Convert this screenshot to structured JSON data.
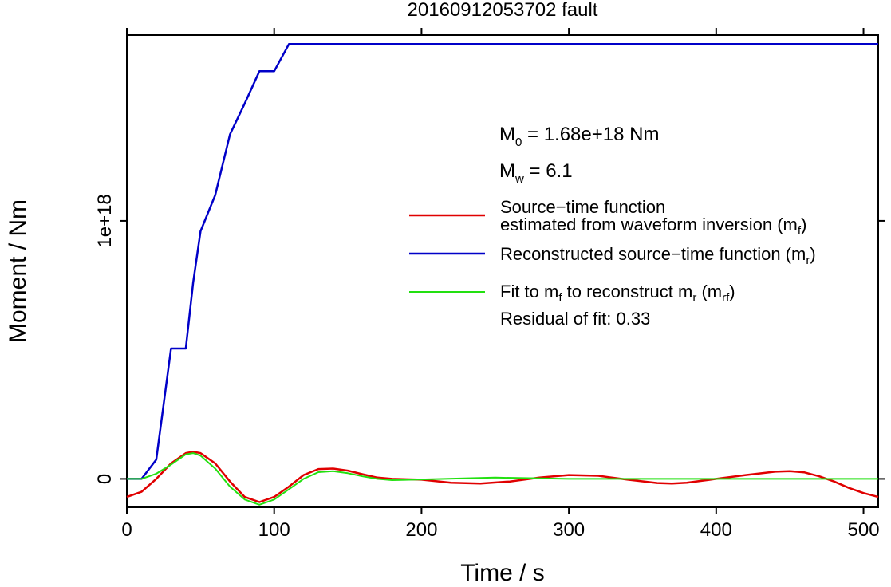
{
  "chart_data": {
    "type": "line",
    "title": "20160912053702 fault",
    "xlabel": "Time / s",
    "ylabel": "Moment / Nm",
    "xlim": [
      0,
      510
    ],
    "ylim": [
      -1.1e+17,
      1.72e+18
    ],
    "xticks": [
      0,
      100,
      200,
      300,
      400,
      500
    ],
    "xtick_labels": [
      "0",
      "100",
      "200",
      "300",
      "400",
      "500"
    ],
    "yticks": [
      0,
      1e+18
    ],
    "ytick_labels": [
      "0",
      "1e+18"
    ],
    "grid": false,
    "legend_position": "right",
    "annotations": {
      "m0_main": "M",
      "m0_sub": "0",
      "m0_value": " = 1.68e+18 Nm",
      "mw_main": "M",
      "mw_sub": "w",
      "mw_value": " = 6.1",
      "residual": "Residual of fit: 0.33"
    },
    "legend": {
      "red_line1": "Source−time function",
      "red_line2_main": "estimated from waveform inversion (m",
      "red_line2_sub": "f",
      "red_line2_end": ")",
      "blue_main": "Reconstructed source−time function (m",
      "blue_sub": "r",
      "blue_end": ")",
      "green_a": "Fit to m",
      "green_sub1": "f",
      "green_b": " to reconstruct m",
      "green_sub2": "r",
      "green_c": " (m",
      "green_sub3": "rf",
      "green_d": ")"
    },
    "series": [
      {
        "key": "mf",
        "color": "#e00000",
        "x": [
          0,
          10,
          20,
          30,
          40,
          45,
          50,
          60,
          70,
          80,
          90,
          100,
          110,
          120,
          130,
          140,
          150,
          160,
          170,
          180,
          200,
          220,
          240,
          260,
          280,
          300,
          320,
          340,
          360,
          370,
          380,
          400,
          420,
          440,
          450,
          460,
          470,
          480,
          490,
          500,
          510
        ],
        "y": [
          -7e+16,
          -5e+16,
          0,
          6e+16,
          1e+17,
          1.05e+17,
          1e+17,
          6e+16,
          -1e+16,
          -7e+16,
          -9e+16,
          -7e+16,
          -3e+16,
          1.5e+16,
          3.8e+16,
          4e+16,
          3.2e+16,
          1.8e+16,
          5000000000000000.0,
          0,
          -3000000000000000.0,
          -1.5e+16,
          -1.8e+16,
          -1e+16,
          5000000000000000.0,
          1.5e+16,
          1.2e+16,
          -3000000000000000.0,
          -1.6e+16,
          -1.8e+16,
          -1.5e+16,
          0,
          1.5e+16,
          2.8e+16,
          3e+16,
          2.5e+16,
          1e+16,
          -1e+16,
          -3.5e+16,
          -5.5e+16,
          -7e+16
        ]
      },
      {
        "key": "mr",
        "color": "#0000c8",
        "x": [
          0,
          10,
          20,
          30,
          40,
          45,
          50,
          60,
          70,
          80,
          90,
          100,
          110,
          510
        ],
        "y": [
          0,
          0,
          7.5e+16,
          5.05e+17,
          5.05e+17,
          7.6e+17,
          9.6e+17,
          1.1e+18,
          1.335e+18,
          1.455e+18,
          1.58e+18,
          1.58e+18,
          1.685e+18,
          1.685e+18
        ]
      },
      {
        "key": "mrf",
        "color": "#22e010",
        "x": [
          0,
          10,
          20,
          30,
          40,
          45,
          50,
          60,
          70,
          80,
          90,
          100,
          110,
          120,
          130,
          140,
          150,
          160,
          170,
          180,
          200,
          250,
          300,
          350,
          400,
          450,
          510
        ],
        "y": [
          0,
          0,
          2e+16,
          5.5e+16,
          9.5e+16,
          1e+17,
          9e+16,
          4e+16,
          -3e+16,
          -8e+16,
          -1e+17,
          -8e+16,
          -4e+16,
          0,
          2.6e+16,
          3e+16,
          2.2e+16,
          1e+16,
          0,
          -5000000000000000.0,
          -2000000000000000.0,
          5000000000000000.0,
          0,
          0,
          0,
          0,
          0
        ]
      }
    ]
  }
}
